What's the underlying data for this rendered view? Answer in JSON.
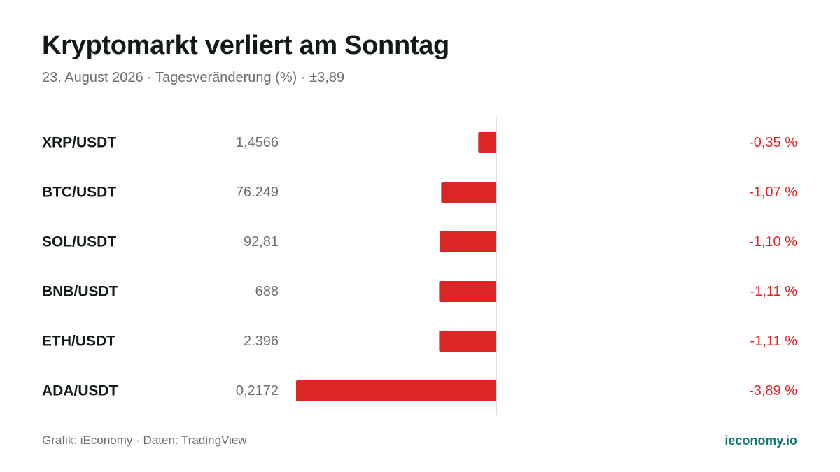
{
  "title": "Kryptomarkt verliert am Sonntag",
  "subtitle": "23. August 2026 · Tagesveränderung (%) · ±3,89",
  "footer": {
    "credit": "Grafik: iEconomy · Daten: TradingView",
    "site": "ieconomy.io"
  },
  "colors": {
    "negative": "#dc2626",
    "site": "#0f7a70"
  },
  "chart_data": {
    "type": "bar",
    "orientation": "horizontal",
    "categories": [
      "XRP/USDT",
      "BTC/USDT",
      "SOL/USDT",
      "BNB/USDT",
      "ETH/USDT",
      "ADA/USDT"
    ],
    "prices": [
      "1,4566",
      "76.249",
      "92,81",
      "688",
      "2.396",
      "0,2172"
    ],
    "values": [
      -0.35,
      -1.07,
      -1.1,
      -1.11,
      -1.11,
      -3.89
    ],
    "value_labels": [
      "-0,35 %",
      "-1,07 %",
      "-1,10 %",
      "-1,11 %",
      "-1,11 %",
      "-3,89 %"
    ],
    "xlim": [
      -3.89,
      3.89
    ],
    "grid": false
  }
}
